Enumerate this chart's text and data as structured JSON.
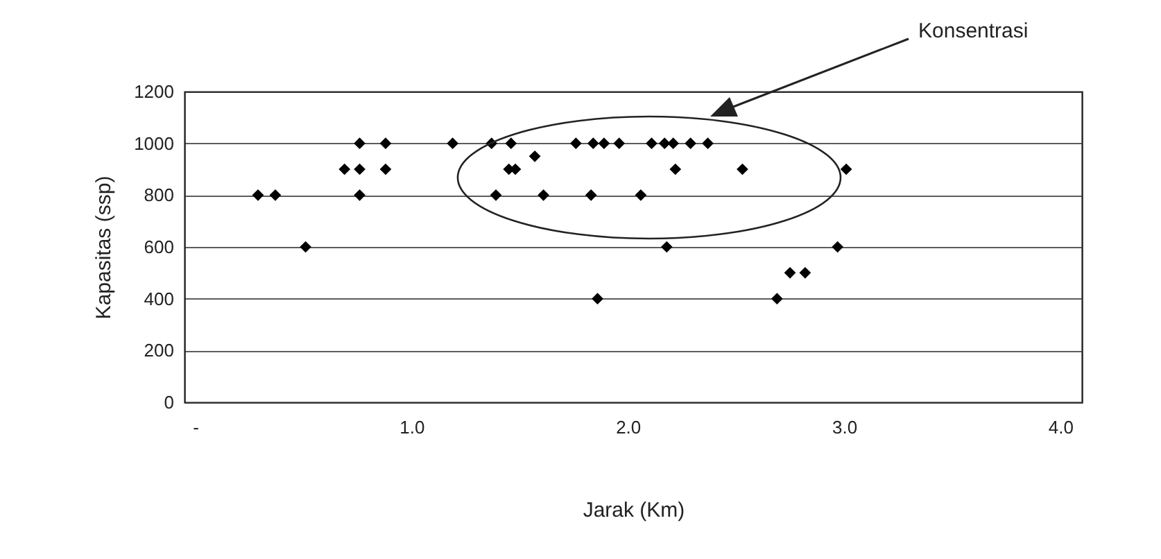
{
  "chart_data": {
    "type": "scatter",
    "xlabel": "Jarak (Km)",
    "ylabel": "Kapasitas (ssp)",
    "annotations": [
      "Konsentrasi"
    ],
    "marker": "diamond",
    "grid": "y",
    "xlim": [
      -0.05,
      4.1
    ],
    "xticks": [
      {
        "value": 0,
        "label": "-"
      },
      {
        "value": 1,
        "label": "1.0"
      },
      {
        "value": 2,
        "label": "2.0"
      },
      {
        "value": 3,
        "label": "3.0"
      },
      {
        "value": 4,
        "label": "4.0"
      }
    ],
    "ylim": [
      0,
      1200
    ],
    "yticks": [
      0,
      200,
      400,
      600,
      800,
      1000,
      1200
    ],
    "series": [
      {
        "color": "#000000",
        "x": [
          0.29,
          0.37,
          0.51,
          0.69,
          0.76,
          0.76,
          0.76,
          0.88,
          0.88,
          1.19,
          1.37,
          1.46,
          1.76,
          1.84,
          1.89,
          1.96,
          2.11,
          2.17,
          2.21,
          2.29,
          2.37,
          1.57,
          1.45,
          1.48,
          2.22,
          2.53,
          3.01,
          1.39,
          1.61,
          1.83,
          2.06,
          2.18,
          2.97,
          2.75,
          2.82,
          1.86,
          2.69
        ],
        "values": [
          800,
          800,
          600,
          900,
          1000,
          900,
          800,
          1000,
          900,
          1000,
          1000,
          1000,
          1000,
          1000,
          1000,
          1000,
          1000,
          1000,
          1000,
          1000,
          1000,
          950,
          900,
          900,
          900,
          900,
          900,
          800,
          800,
          800,
          800,
          600,
          600,
          500,
          500,
          400,
          400
        ]
      }
    ]
  }
}
